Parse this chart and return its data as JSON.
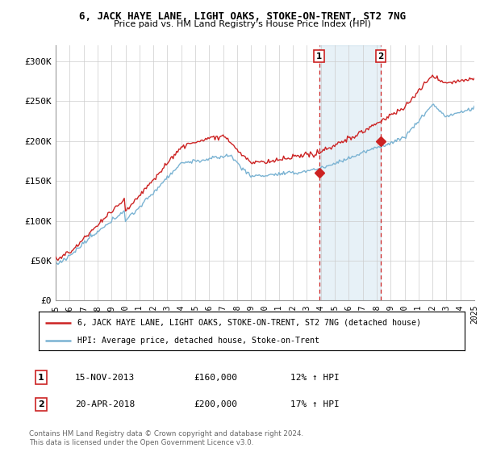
{
  "title": "6, JACK HAYE LANE, LIGHT OAKS, STOKE-ON-TRENT, ST2 7NG",
  "subtitle": "Price paid vs. HM Land Registry's House Price Index (HPI)",
  "legend_line1": "6, JACK HAYE LANE, LIGHT OAKS, STOKE-ON-TRENT, ST2 7NG (detached house)",
  "legend_line2": "HPI: Average price, detached house, Stoke-on-Trent",
  "sale1_label": "1",
  "sale1_date": "15-NOV-2013",
  "sale1_price": "£160,000",
  "sale1_hpi": "12% ↑ HPI",
  "sale2_label": "2",
  "sale2_date": "20-APR-2018",
  "sale2_price": "£200,000",
  "sale2_hpi": "17% ↑ HPI",
  "footer": "Contains HM Land Registry data © Crown copyright and database right 2024.\nThis data is licensed under the Open Government Licence v3.0.",
  "hpi_color": "#7ab3d3",
  "price_color": "#cc2222",
  "sale1_x": 2013.88,
  "sale2_x": 2018.3,
  "sale1_y": 160000,
  "sale2_y": 200000,
  "ylim": [
    0,
    320000
  ],
  "xlim_start": 1995,
  "xlim_end": 2025,
  "yticks": [
    0,
    50000,
    100000,
    150000,
    200000,
    250000,
    300000
  ],
  "ytick_labels": [
    "£0",
    "£50K",
    "£100K",
    "£150K",
    "£200K",
    "£250K",
    "£300K"
  ],
  "xticks": [
    1995,
    1996,
    1997,
    1998,
    1999,
    2000,
    2001,
    2002,
    2003,
    2004,
    2005,
    2006,
    2007,
    2008,
    2009,
    2010,
    2011,
    2012,
    2013,
    2014,
    2015,
    2016,
    2017,
    2018,
    2019,
    2020,
    2021,
    2022,
    2023,
    2024,
    2025
  ],
  "bg_color": "#ffffff",
  "grid_color": "#cccccc"
}
